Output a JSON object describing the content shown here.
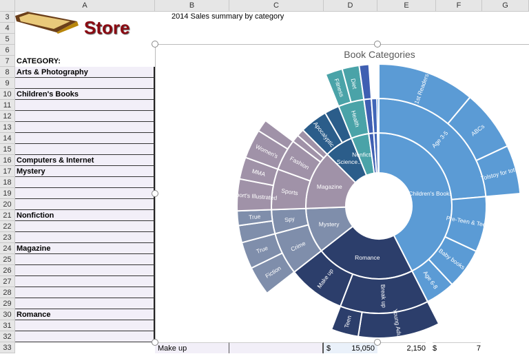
{
  "sheet": {
    "columns": [
      "A",
      "B",
      "C",
      "D",
      "E",
      "F",
      "G"
    ],
    "rows": [
      "3",
      "4",
      "5",
      "6",
      "7",
      "8",
      "9",
      "10",
      "11",
      "12",
      "13",
      "14",
      "15",
      "16",
      "17",
      "18",
      "19",
      "20",
      "21",
      "22",
      "23",
      "24",
      "25",
      "26",
      "27",
      "28",
      "29",
      "30",
      "31",
      "32",
      "33"
    ],
    "logo_text": "Store",
    "subtitle": "2014 Sales summary by category",
    "category_header": "CATEGORY:",
    "categories": [
      {
        "row": "8",
        "label": "Arts & Photography"
      },
      {
        "row": "10",
        "label": "Children's Books"
      },
      {
        "row": "16",
        "label": "Computers & Internet"
      },
      {
        "row": "17",
        "label": "Mystery"
      },
      {
        "row": "21",
        "label": "Nonfiction"
      },
      {
        "row": "24",
        "label": "Magazine"
      },
      {
        "row": "30",
        "label": "Romance"
      }
    ],
    "row33": {
      "b": "Make up",
      "d_currency": "$",
      "d_value": "15,050",
      "e_value": "2,150",
      "f_currency": "$",
      "f_value": "7"
    }
  },
  "chart_data": {
    "type": "sunburst",
    "title": "Book Categories",
    "tree": [
      {
        "name": "Children's Books",
        "color": "#5b9bd5",
        "value": 153,
        "children": [
          {
            "name": "Age 3-5",
            "value": 85,
            "children": [
              {
                "name": "1st Readers",
                "value": 40
              },
              {
                "name": "ABCs",
                "value": 25
              },
              {
                "name": "Tolstoy for tots",
                "value": 20
              }
            ]
          },
          {
            "name": "Pre-Teen & Teen",
            "value": 30
          },
          {
            "name": "Baby books",
            "value": 22
          },
          {
            "name": "Age 6-8",
            "value": 16
          }
        ]
      },
      {
        "name": "Romance",
        "color": "#2c3e6b",
        "value": 79,
        "children": [
          {
            "name": "Break up",
            "value": 48,
            "children": [
              {
                "name": "Young Adult",
                "value": 36
              },
              {
                "name": "Teen",
                "value": 12
              }
            ]
          },
          {
            "name": "Make up",
            "value": 31
          }
        ]
      },
      {
        "name": "Mystery",
        "color": "#7f8eab",
        "value": 36,
        "children": [
          {
            "name": "Crime",
            "value": 23,
            "children": [
              {
                "name": "Fiction",
                "value": 12
              },
              {
                "name": "True",
                "value": 11
              }
            ]
          },
          {
            "name": "Spy",
            "value": 13,
            "children": [
              {
                "name": "",
                "value": 7
              },
              {
                "name": "True",
                "value": 6
              }
            ]
          }
        ]
      },
      {
        "name": "Magazine",
        "color": "#a092a8",
        "value": 47,
        "children": [
          {
            "name": "Sports",
            "value": 22,
            "children": [
              {
                "name": "Sport's Illustrated",
                "value": 13
              },
              {
                "name": "MMA",
                "value": 9
              }
            ]
          },
          {
            "name": "Fashion",
            "value": 17,
            "children": [
              {
                "name": "Women's",
                "value": 12
              },
              {
                "name": "",
                "value": 5
              }
            ]
          },
          {
            "name": "",
            "value": 4
          },
          {
            "name": "",
            "value": 4
          }
        ]
      },
      {
        "name": "Science...",
        "color": "#2b5d8a",
        "value": 23,
        "children": [
          {
            "name": "Apocalyptic",
            "value": 15
          },
          {
            "name": "",
            "value": 8
          }
        ]
      },
      {
        "name": "Nonfiction",
        "color": "#4aa3a8",
        "value": 14,
        "children": [
          {
            "name": "Health",
            "value": 14,
            "children": [
              {
                "name": "Fitness",
                "value": 7
              },
              {
                "name": "Diet",
                "value": 7
              }
            ]
          }
        ]
      },
      {
        "name": "",
        "color": "#3f5fb2",
        "value": 4,
        "children": [
          {
            "name": "",
            "value": 4,
            "children": [
              {
                "name": "",
                "value": 4
              }
            ]
          }
        ]
      },
      {
        "name": "",
        "color": "#4166b8",
        "value": 3,
        "children": [
          {
            "name": "",
            "value": 3
          }
        ]
      },
      {
        "name": "",
        "color": "#1f78d6",
        "value": 1,
        "children": [
          {
            "name": "",
            "value": 1
          }
        ]
      }
    ]
  }
}
